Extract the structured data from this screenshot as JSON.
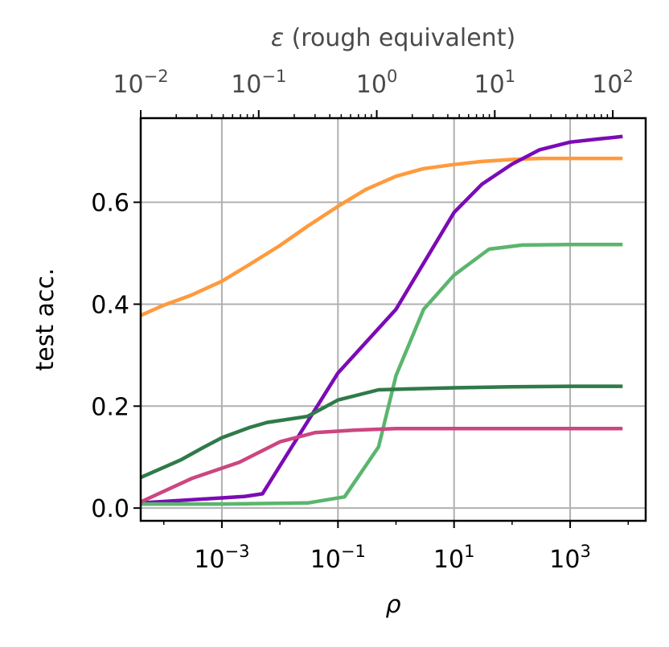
{
  "chart_data": {
    "type": "line",
    "xlabel": "ρ",
    "ylabel": "test acc.",
    "top_xlabel_symbol": "ε",
    "top_xlabel_text": " (rough equivalent)",
    "x_scale": "log",
    "xlim": [
      4e-05,
      20000
    ],
    "ylim": [
      -0.025,
      0.765
    ],
    "grid": true,
    "legend": "none",
    "x_ticks": [
      {
        "value": 0.001,
        "base": "10",
        "exp": "−3"
      },
      {
        "value": 0.1,
        "base": "10",
        "exp": "−1"
      },
      {
        "value": 10,
        "base": "10",
        "exp": "1"
      },
      {
        "value": 1000,
        "base": "10",
        "exp": "3"
      }
    ],
    "y_ticks": [
      {
        "value": 0.0,
        "label": "0.0"
      },
      {
        "value": 0.2,
        "label": "0.2"
      },
      {
        "value": 0.4,
        "label": "0.4"
      },
      {
        "value": 0.6,
        "label": "0.6"
      }
    ],
    "top_axis": {
      "scale": "log",
      "xlim": [
        0.01,
        190
      ],
      "ticks": [
        {
          "value": 0.01,
          "base": "10",
          "exp": "−2"
        },
        {
          "value": 0.1,
          "base": "10",
          "exp": "−1"
        },
        {
          "value": 1,
          "base": "10",
          "exp": "0"
        },
        {
          "value": 10,
          "base": "10",
          "exp": "1"
        },
        {
          "value": 100,
          "base": "10",
          "exp": "2"
        }
      ]
    },
    "series": [
      {
        "color": "#ff9a3c",
        "points": [
          [
            4e-05,
            0.378
          ],
          [
            0.0001,
            0.398
          ],
          [
            0.0003,
            0.418
          ],
          [
            0.001,
            0.445
          ],
          [
            0.003,
            0.478
          ],
          [
            0.01,
            0.515
          ],
          [
            0.03,
            0.553
          ],
          [
            0.1,
            0.592
          ],
          [
            0.3,
            0.625
          ],
          [
            1,
            0.651
          ],
          [
            3,
            0.666
          ],
          [
            10,
            0.674
          ],
          [
            30,
            0.68
          ],
          [
            100,
            0.684
          ],
          [
            300,
            0.686
          ],
          [
            1000,
            0.686
          ],
          [
            3000,
            0.686
          ],
          [
            8000,
            0.686
          ]
        ]
      },
      {
        "color": "#7b0bb5",
        "points": [
          [
            4e-05,
            0.01
          ],
          [
            0.001,
            0.02
          ],
          [
            0.0025,
            0.023
          ],
          [
            0.005,
            0.028
          ],
          [
            0.1,
            0.265
          ],
          [
            1,
            0.39
          ],
          [
            10,
            0.58
          ],
          [
            30,
            0.635
          ],
          [
            100,
            0.675
          ],
          [
            300,
            0.703
          ],
          [
            1000,
            0.718
          ],
          [
            3000,
            0.724
          ],
          [
            8000,
            0.729
          ]
        ]
      },
      {
        "color": "#5bb56e",
        "points": [
          [
            4e-05,
            0.008
          ],
          [
            0.001,
            0.008
          ],
          [
            0.03,
            0.01
          ],
          [
            0.13,
            0.022
          ],
          [
            0.5,
            0.12
          ],
          [
            1,
            0.26
          ],
          [
            3,
            0.39
          ],
          [
            10,
            0.457
          ],
          [
            40,
            0.508
          ],
          [
            150,
            0.516
          ],
          [
            1000,
            0.517
          ],
          [
            8000,
            0.517
          ]
        ]
      },
      {
        "color": "#2f7a49",
        "points": [
          [
            4e-05,
            0.06
          ],
          [
            0.0002,
            0.095
          ],
          [
            0.0005,
            0.12
          ],
          [
            0.001,
            0.138
          ],
          [
            0.003,
            0.158
          ],
          [
            0.006,
            0.168
          ],
          [
            0.03,
            0.18
          ],
          [
            0.1,
            0.212
          ],
          [
            0.5,
            0.232
          ],
          [
            2,
            0.234
          ],
          [
            10,
            0.236
          ],
          [
            100,
            0.238
          ],
          [
            1000,
            0.239
          ],
          [
            8000,
            0.239
          ]
        ]
      },
      {
        "color": "#cc4680",
        "points": [
          [
            4e-05,
            0.012
          ],
          [
            0.0003,
            0.058
          ],
          [
            0.002,
            0.09
          ],
          [
            0.01,
            0.13
          ],
          [
            0.04,
            0.148
          ],
          [
            0.2,
            0.153
          ],
          [
            1,
            0.156
          ],
          [
            10,
            0.156
          ],
          [
            100,
            0.156
          ],
          [
            1000,
            0.156
          ],
          [
            8000,
            0.156
          ]
        ]
      }
    ]
  }
}
